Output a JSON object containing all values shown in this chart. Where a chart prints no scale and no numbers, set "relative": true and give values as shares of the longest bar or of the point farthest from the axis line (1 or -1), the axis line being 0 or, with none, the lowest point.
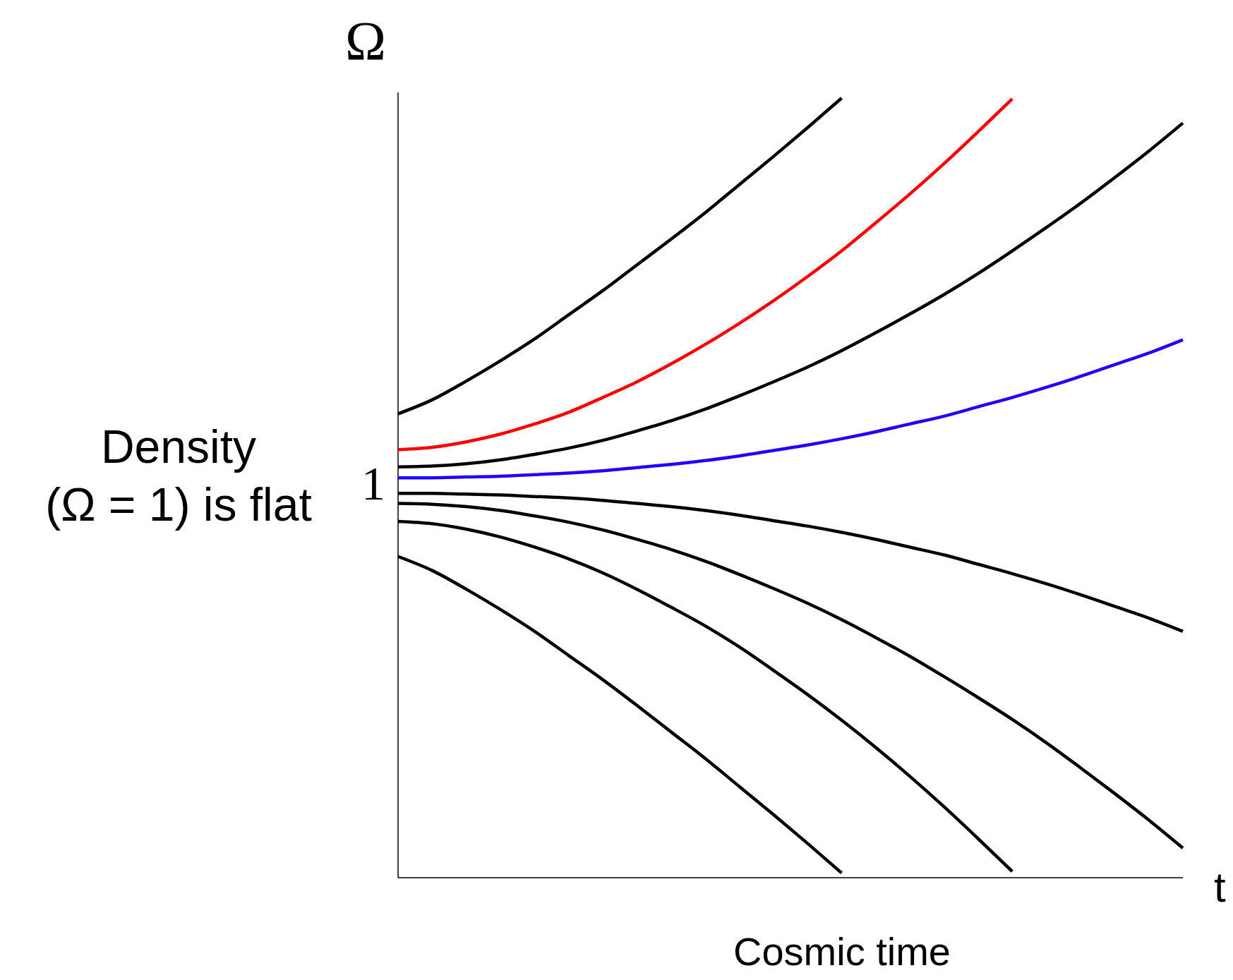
{
  "chart_data": {
    "type": "line",
    "relative": true,
    "ylabel": "Ω",
    "xlabel": "t",
    "line_style": "solid",
    "marker": "none",
    "categories": [
      null,
      null,
      null,
      null,
      null,
      null,
      null,
      null,
      null,
      null,
      null,
      null,
      null,
      null,
      null,
      null,
      null,
      null,
      null,
      null,
      null,
      null,
      null,
      null
    ],
    "annotations": [
      "Density (Ω = 1) is flat",
      "Cosmic time",
      "1"
    ],
    "series": [
      {
        "color": "#000000",
        "values": [
          0.595,
          0.613,
          0.637,
          0.663,
          0.691,
          0.722,
          0.753,
          0.786,
          0.819,
          0.853,
          0.889,
          0.925,
          0.962,
          1.0,
          null,
          null,
          null,
          null,
          null,
          null,
          null,
          null,
          null,
          null
        ]
      },
      {
        "color": "#ff0000",
        "values": [
          0.549,
          0.552,
          0.559,
          0.569,
          0.582,
          0.597,
          0.616,
          0.636,
          0.659,
          0.684,
          0.711,
          0.74,
          0.771,
          0.804,
          0.84,
          0.877,
          0.916,
          0.957,
          0.999,
          null,
          null,
          null,
          null,
          null
        ]
      },
      {
        "color": "#000000",
        "values": [
          0.527,
          0.528,
          0.531,
          0.536,
          0.543,
          0.551,
          0.561,
          0.573,
          0.586,
          0.601,
          0.618,
          0.636,
          0.655,
          0.676,
          0.699,
          0.723,
          0.748,
          0.775,
          0.804,
          0.834,
          0.865,
          0.898,
          0.932,
          0.968
        ]
      },
      {
        "color": "#2200ff",
        "values": [
          0.513,
          0.513,
          0.514,
          0.515,
          0.517,
          0.519,
          0.522,
          0.526,
          0.53,
          0.535,
          0.541,
          0.548,
          0.555,
          0.563,
          0.572,
          0.582,
          0.592,
          0.604,
          0.616,
          0.629,
          0.643,
          0.658,
          0.673,
          0.69
        ]
      },
      {
        "color": "#000000",
        "values": [
          0.493,
          0.493,
          0.492,
          0.491,
          0.489,
          0.487,
          0.484,
          0.48,
          0.476,
          0.471,
          0.465,
          0.458,
          0.451,
          0.443,
          0.434,
          0.424,
          0.414,
          0.402,
          0.39,
          0.377,
          0.363,
          0.348,
          0.333,
          0.316
        ]
      },
      {
        "color": "#000000",
        "values": [
          0.48,
          0.479,
          0.476,
          0.471,
          0.464,
          0.456,
          0.446,
          0.434,
          0.421,
          0.406,
          0.389,
          0.371,
          0.352,
          0.331,
          0.308,
          0.284,
          0.258,
          0.231,
          0.203,
          0.173,
          0.141,
          0.108,
          0.074,
          0.038
        ]
      },
      {
        "color": "#000000",
        "values": [
          0.457,
          0.454,
          0.447,
          0.437,
          0.424,
          0.409,
          0.391,
          0.37,
          0.347,
          0.323,
          0.296,
          0.266,
          0.235,
          0.202,
          0.167,
          0.13,
          0.091,
          0.05,
          0.008,
          null,
          null,
          null,
          null,
          null
        ]
      },
      {
        "color": "#000000",
        "values": [
          0.412,
          0.394,
          0.37,
          0.344,
          0.316,
          0.285,
          0.254,
          0.221,
          0.187,
          0.153,
          0.117,
          0.081,
          0.044,
          0.006,
          null,
          null,
          null,
          null,
          null,
          null,
          null,
          null,
          null,
          null
        ]
      }
    ]
  }
}
